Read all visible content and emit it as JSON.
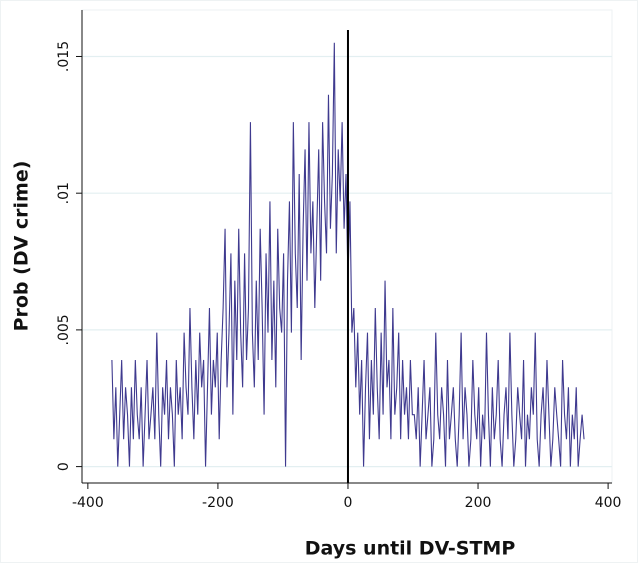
{
  "chart_data": {
    "type": "line",
    "xlabel": "Days until DV-STMP",
    "ylabel": "Prob (DV crime)",
    "xlim": [
      -409,
      406
    ],
    "ylim": [
      -0.0006,
      0.0167
    ],
    "xticks": [
      -400,
      -200,
      0,
      200,
      400
    ],
    "yticks": [
      0,
      {
        "value": 0.005,
        "label": ".005"
      },
      {
        "value": 0.01,
        "label": ".01"
      },
      {
        "value": 0.015,
        "label": ".015"
      }
    ],
    "grid": true,
    "xline": 0,
    "x": [
      -363,
      -360,
      -357,
      -354,
      -351,
      -348,
      -345,
      -342,
      -339,
      -336,
      -333,
      -330,
      -327,
      -324,
      -321,
      -318,
      -315,
      -312,
      -309,
      -306,
      -303,
      -300,
      -297,
      -294,
      -291,
      -288,
      -285,
      -282,
      -279,
      -276,
      -273,
      -270,
      -267,
      -264,
      -261,
      -258,
      -255,
      -252,
      -249,
      -246,
      -243,
      -240,
      -237,
      -234,
      -231,
      -228,
      -225,
      -222,
      -219,
      -216,
      -213,
      -210,
      -207,
      -204,
      -201,
      -198,
      -195,
      -192,
      -189,
      -186,
      -183,
      -180,
      -177,
      -174,
      -171,
      -168,
      -165,
      -162,
      -159,
      -156,
      -153,
      -150,
      -147,
      -144,
      -141,
      -138,
      -135,
      -132,
      -129,
      -126,
      -123,
      -120,
      -117,
      -114,
      -111,
      -108,
      -105,
      -102,
      -99,
      -96,
      -93,
      -90,
      -87,
      -84,
      -81,
      -78,
      -75,
      -72,
      -69,
      -66,
      -63,
      -60,
      -57,
      -54,
      -51,
      -48,
      -45,
      -42,
      -39,
      -36,
      -33,
      -30,
      -27,
      -24,
      -21,
      -18,
      -15,
      -12,
      -9,
      -6,
      -3,
      0,
      3,
      6,
      9,
      12,
      15,
      18,
      21,
      24,
      27,
      30,
      33,
      36,
      39,
      42,
      45,
      48,
      51,
      54,
      57,
      60,
      63,
      66,
      69,
      72,
      75,
      78,
      81,
      84,
      87,
      90,
      93,
      96,
      99,
      102,
      105,
      108,
      111,
      114,
      117,
      120,
      123,
      126,
      129,
      132,
      135,
      138,
      141,
      144,
      147,
      150,
      153,
      156,
      159,
      162,
      165,
      168,
      171,
      174,
      177,
      180,
      183,
      186,
      189,
      192,
      195,
      198,
      201,
      204,
      207,
      210,
      213,
      216,
      219,
      222,
      225,
      228,
      231,
      234,
      237,
      240,
      243,
      246,
      249,
      252,
      255,
      258,
      261,
      264,
      267,
      270,
      273,
      276,
      279,
      282,
      285,
      288,
      291,
      294,
      297,
      300,
      303,
      306,
      309,
      312,
      315,
      318,
      321,
      324,
      327,
      330,
      333,
      336,
      339,
      342,
      345,
      348,
      351,
      354,
      357,
      360,
      363
    ],
    "series": [
      {
        "color": "#3f3a8f",
        "values": [
          0.0039,
          0.001,
          0.0029,
          0,
          0.0019,
          0.0039,
          0.001,
          0.0029,
          0.0019,
          0,
          0.0029,
          0.001,
          0.0039,
          0.0019,
          0.001,
          0.0029,
          0,
          0.0019,
          0.0039,
          0.001,
          0.0019,
          0.0029,
          0.001,
          0.0049,
          0.0019,
          0,
          0.0029,
          0.0019,
          0.0039,
          0.001,
          0.0029,
          0.0019,
          0,
          0.0039,
          0.0019,
          0.0029,
          0.001,
          0.0049,
          0.0029,
          0.0019,
          0.0058,
          0.0029,
          0.001,
          0.0039,
          0.0019,
          0.0049,
          0.0029,
          0.0039,
          0,
          0.0029,
          0.0058,
          0.0019,
          0.0039,
          0.0029,
          0.0049,
          0.001,
          0.0039,
          0.0058,
          0.0087,
          0.0029,
          0.0049,
          0.0078,
          0.0019,
          0.0068,
          0.0039,
          0.0087,
          0.0049,
          0.0029,
          0.0078,
          0.0039,
          0.0058,
          0.0126,
          0.0049,
          0.0029,
          0.0068,
          0.0039,
          0.0087,
          0.0058,
          0.0019,
          0.0078,
          0.0049,
          0.0097,
          0.0039,
          0.0068,
          0.0029,
          0.0087,
          0.0058,
          0.0049,
          0.0078,
          0,
          0.0068,
          0.0097,
          0.0049,
          0.0126,
          0.0078,
          0.0058,
          0.0107,
          0.0039,
          0.0087,
          0.0116,
          0.0068,
          0.0126,
          0.0078,
          0.0097,
          0.0058,
          0.0087,
          0.0116,
          0.0068,
          0.0126,
          0.0097,
          0.0078,
          0.0136,
          0.0087,
          0.0107,
          0.0155,
          0.0078,
          0.0116,
          0.0097,
          0.0126,
          0.0087,
          0.0107,
          0.0068,
          0.0097,
          0.0049,
          0.0058,
          0.0029,
          0.0049,
          0.0019,
          0.0039,
          0,
          0.0029,
          0.0049,
          0.001,
          0.0039,
          0.0019,
          0.0058,
          0.0029,
          0.001,
          0.0049,
          0.0019,
          0.0068,
          0.0029,
          0.0039,
          0.001,
          0.0058,
          0.0019,
          0.0029,
          0.0049,
          0.001,
          0.0039,
          0.0019,
          0.0029,
          0.001,
          0.0039,
          0.0019,
          0.0019,
          0.001,
          0.0029,
          0,
          0.0019,
          0.0039,
          0.001,
          0.0019,
          0.0029,
          0,
          0.001,
          0.0049,
          0.0019,
          0.001,
          0.0029,
          0.0019,
          0,
          0.0039,
          0.001,
          0.0019,
          0.0029,
          0.001,
          0,
          0.0019,
          0.0049,
          0.001,
          0.0029,
          0.0019,
          0,
          0.001,
          0.0039,
          0.0019,
          0.001,
          0.0029,
          0,
          0.0019,
          0.001,
          0.0049,
          0.0019,
          0,
          0.0029,
          0.001,
          0.0019,
          0.0039,
          0.001,
          0,
          0.0019,
          0.0029,
          0.001,
          0.0049,
          0.0019,
          0,
          0.001,
          0.0029,
          0.0019,
          0.001,
          0.0039,
          0,
          0.0019,
          0.001,
          0.0029,
          0.0019,
          0.0049,
          0.001,
          0,
          0.0019,
          0.0029,
          0.001,
          0.0039,
          0.0019,
          0,
          0.001,
          0.0029,
          0.0019,
          0.001,
          0,
          0.0039,
          0.0019,
          0.001,
          0.0029,
          0,
          0.0019,
          0.001,
          0.0029,
          0,
          0.001,
          0.0019,
          0.001
        ]
      }
    ]
  }
}
